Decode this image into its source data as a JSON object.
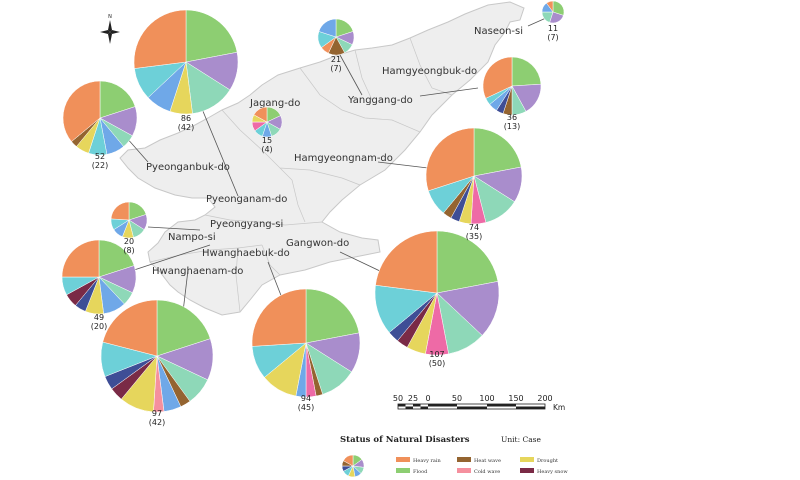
{
  "colors": {
    "heavy_rain": "#f0905a",
    "flood": "#8dce72",
    "purple": "#a98dcc",
    "mint": "#8ed8b8",
    "blue": "#6fa8e8",
    "yellow": "#e6d65c",
    "cyan": "#6dd0d8",
    "navy": "#3e4e96",
    "pink": "#ee6aa6",
    "heat_wave": "#946430",
    "cold_wave": "#f5909e",
    "heavy_snow": "#7a2a46",
    "land": "#eeeeee",
    "land_edge": "#c8c8c8"
  },
  "legend": {
    "title": "Status of Natural Disasters",
    "unit": "Unit:  Case",
    "items": [
      {
        "label": "Heavy rain",
        "color": "#f0905a"
      },
      {
        "label": "Heat wave",
        "color": "#946430"
      },
      {
        "label": "Drought",
        "color": "#e6d65c"
      },
      {
        "label": "Flood",
        "color": "#8dce72"
      },
      {
        "label": "Cold wave",
        "color": "#f5909e"
      },
      {
        "label": "Heavy snow",
        "color": "#7a2a46"
      }
    ]
  },
  "scale": {
    "ticks": [
      "50",
      "25",
      "0",
      "50",
      "100",
      "150",
      "200"
    ],
    "unit": "Km"
  },
  "north_label": "N",
  "regions": [
    {
      "name": "Naseon-si",
      "total": "11",
      "sub": "(7)"
    },
    {
      "name": "Hamgyeongbuk-do",
      "total": "36",
      "sub": "(13)"
    },
    {
      "name": "Yanggang-do",
      "total": "21",
      "sub": "(7)"
    },
    {
      "name": "Jagang-do",
      "total": "15",
      "sub": "(4)"
    },
    {
      "name": "Hamgyeongnam-do",
      "total": "74",
      "sub": "(35)"
    },
    {
      "name": "Pyeonganbuk-do",
      "total": "52",
      "sub": "(22)"
    },
    {
      "name": "Pyeonganam-do",
      "total": "86",
      "sub": "(42)"
    },
    {
      "name": "Pyeongyang-si",
      "total": "20",
      "sub": "(8)"
    },
    {
      "name": "Nampo-si",
      "total": "49",
      "sub": "(20)"
    },
    {
      "name": "Hwanghaebuk-do",
      "total": "94",
      "sub": "(45)"
    },
    {
      "name": "Hwanghaenam-do",
      "total": "97",
      "sub": "(42)"
    },
    {
      "name": "Gangwon-do",
      "total": "107",
      "sub": "(50)"
    }
  ],
  "pies": [
    {
      "region": "Naseon-si",
      "slices": [
        [
          "flood",
          30
        ],
        [
          "purple",
          25
        ],
        [
          "mint",
          20
        ],
        [
          "blue",
          15
        ],
        [
          "heavy_rain",
          10
        ]
      ]
    },
    {
      "region": "Hamgyeongbuk-do",
      "slices": [
        [
          "flood",
          24
        ],
        [
          "purple",
          18
        ],
        [
          "mint",
          8
        ],
        [
          "heat_wave",
          5
        ],
        [
          "navy",
          4
        ],
        [
          "blue",
          5
        ],
        [
          "cyan",
          4
        ],
        [
          "heavy_rain",
          32
        ]
      ]
    },
    {
      "region": "Yanggang-do",
      "slices": [
        [
          "flood",
          20
        ],
        [
          "purple",
          12
        ],
        [
          "mint",
          10
        ],
        [
          "heat_wave",
          15
        ],
        [
          "heavy_rain",
          8
        ],
        [
          "cyan",
          15
        ],
        [
          "blue",
          20
        ]
      ]
    },
    {
      "region": "Jagang-do",
      "slices": [
        [
          "flood",
          18
        ],
        [
          "purple",
          15
        ],
        [
          "mint",
          12
        ],
        [
          "blue",
          10
        ],
        [
          "cyan",
          10
        ],
        [
          "pink",
          10
        ],
        [
          "yellow",
          8
        ],
        [
          "heavy_rain",
          17
        ]
      ]
    },
    {
      "region": "Hamgyeongnam-do",
      "slices": [
        [
          "flood",
          22
        ],
        [
          "purple",
          12
        ],
        [
          "mint",
          12
        ],
        [
          "pink",
          5
        ],
        [
          "yellow",
          4
        ],
        [
          "navy",
          3
        ],
        [
          "heat_wave",
          3
        ],
        [
          "cyan",
          9
        ],
        [
          "heavy_rain",
          30
        ]
      ]
    },
    {
      "region": "Pyeonganbuk-do",
      "slices": [
        [
          "flood",
          20
        ],
        [
          "purple",
          13
        ],
        [
          "mint",
          6
        ],
        [
          "blue",
          8
        ],
        [
          "cyan",
          8
        ],
        [
          "yellow",
          6
        ],
        [
          "heat_wave",
          3
        ],
        [
          "heavy_rain",
          36
        ]
      ]
    },
    {
      "region": "Pyeonganam-do",
      "slices": [
        [
          "flood",
          22
        ],
        [
          "purple",
          12
        ],
        [
          "mint",
          14
        ],
        [
          "yellow",
          7
        ],
        [
          "blue",
          8
        ],
        [
          "cyan",
          10
        ],
        [
          "heavy_rain",
          27
        ]
      ]
    },
    {
      "region": "Pyeongyang-si",
      "slices": [
        [
          "flood",
          20
        ],
        [
          "purple",
          14
        ],
        [
          "mint",
          12
        ],
        [
          "yellow",
          10
        ],
        [
          "blue",
          10
        ],
        [
          "cyan",
          10
        ],
        [
          "heavy_rain",
          24
        ]
      ]
    },
    {
      "region": "Nampo-si",
      "slices": [
        [
          "flood",
          20
        ],
        [
          "purple",
          12
        ],
        [
          "mint",
          6
        ],
        [
          "blue",
          10
        ],
        [
          "yellow",
          8
        ],
        [
          "navy",
          5
        ],
        [
          "heavy_snow",
          6
        ],
        [
          "cyan",
          8
        ],
        [
          "heavy_rain",
          25
        ]
      ]
    },
    {
      "region": "Hwanghaebuk-do",
      "slices": [
        [
          "flood",
          22
        ],
        [
          "purple",
          12
        ],
        [
          "mint",
          11
        ],
        [
          "heat_wave",
          2
        ],
        [
          "pink",
          3
        ],
        [
          "blue",
          3
        ],
        [
          "yellow",
          11
        ],
        [
          "cyan",
          10
        ],
        [
          "heavy_rain",
          26
        ]
      ]
    },
    {
      "region": "Hwanghaenam-do",
      "slices": [
        [
          "flood",
          20
        ],
        [
          "purple",
          12
        ],
        [
          "mint",
          8
        ],
        [
          "heat_wave",
          3
        ],
        [
          "blue",
          5
        ],
        [
          "cold_wave",
          3
        ],
        [
          "yellow",
          10
        ],
        [
          "heavy_snow",
          4
        ],
        [
          "navy",
          4
        ],
        [
          "cyan",
          10
        ],
        [
          "heavy_rain",
          21
        ]
      ]
    },
    {
      "region": "Gangwon-do",
      "slices": [
        [
          "flood",
          22
        ],
        [
          "purple",
          15
        ],
        [
          "mint",
          10
        ],
        [
          "pink",
          6
        ],
        [
          "yellow",
          5
        ],
        [
          "heavy_snow",
          3
        ],
        [
          "navy",
          3
        ],
        [
          "cyan",
          13
        ],
        [
          "heavy_rain",
          23
        ]
      ]
    },
    {
      "region": "legend",
      "slices": [
        [
          "flood",
          15
        ],
        [
          "purple",
          12
        ],
        [
          "mint",
          10
        ],
        [
          "blue",
          10
        ],
        [
          "yellow",
          10
        ],
        [
          "cyan",
          10
        ],
        [
          "navy",
          8
        ],
        [
          "heat_wave",
          8
        ],
        [
          "heavy_rain",
          17
        ]
      ]
    }
  ]
}
